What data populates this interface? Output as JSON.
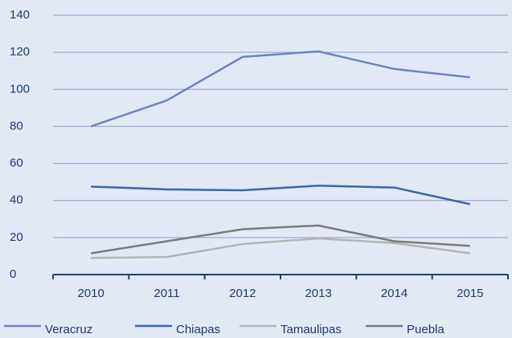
{
  "chart_data": {
    "type": "line",
    "categories": [
      "2010",
      "2011",
      "2012",
      "2013",
      "2014",
      "2015"
    ],
    "series": [
      {
        "name": "Veracruz",
        "color": "#6c84bf",
        "values": [
          80,
          94,
          117.5,
          120.5,
          111,
          106.5
        ]
      },
      {
        "name": "Chiapas",
        "color": "#3a66ad",
        "values": [
          47.5,
          46,
          45.5,
          48,
          47,
          38
        ]
      },
      {
        "name": "Tamaulipas",
        "color": "#b3b3b3",
        "values": [
          9,
          9.5,
          16.5,
          19.5,
          17,
          11.5
        ]
      },
      {
        "name": "Puebla",
        "color": "#7b7b7d",
        "values": [
          11.5,
          18,
          24.5,
          26.5,
          18,
          15.5
        ]
      }
    ],
    "ylim": [
      0,
      140
    ],
    "yticks": [
      0,
      20,
      40,
      60,
      80,
      100,
      120,
      140
    ],
    "grid": true
  }
}
